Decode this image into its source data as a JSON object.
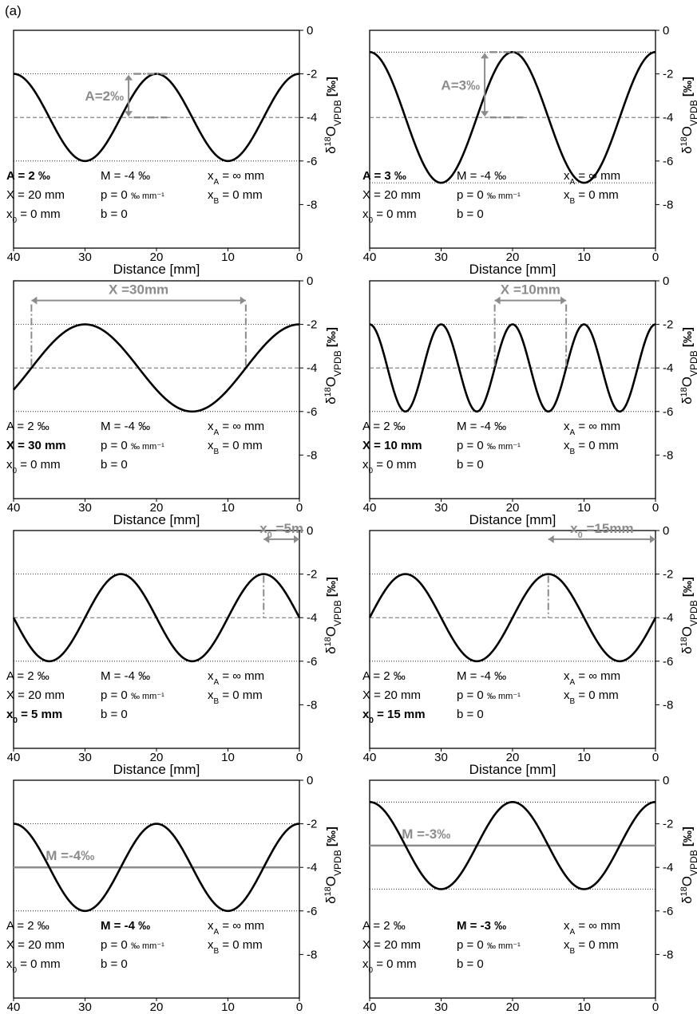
{
  "figure_label": "(a)",
  "colors": {
    "curve": "#000000",
    "annotation": "#8c8c8c",
    "frame": "#000000"
  },
  "chart_data": [
    {
      "type": "line",
      "panel": "1",
      "xlabel": "Distance [mm]",
      "ylabel": "δ18OVPDB [‰]",
      "xlim": [
        40,
        0
      ],
      "ylim": [
        -10,
        0
      ],
      "x_ticks": [
        "40",
        "30",
        "20",
        "10",
        "0"
      ],
      "y_ticks": [
        "0",
        "-2",
        "-4",
        "-6",
        "-8"
      ],
      "params": {
        "A": 2,
        "M": -4,
        "X": 20,
        "x0": 0,
        "p": 0,
        "b": 0,
        "xA": "∞",
        "xB": 0
      },
      "reference_lines": {
        "upper": -2,
        "mean": -4,
        "lower": -6
      },
      "param_text": {
        "A": "A =  2  ‰",
        "M": "M = -4 ‰",
        "xA": "x  =  ∞  mm",
        "X": "X =  20 mm",
        "p": "p =   0  ‰ mm⁻¹",
        "xB": "x  =  0  mm",
        "x0": "x  =  0  mm",
        "b": "b =   0"
      },
      "bold_param": "A",
      "annotation": "A=2‰"
    },
    {
      "type": "line",
      "panel": "2",
      "xlabel": "Distance [mm]",
      "ylabel": "δ18OVPDB [‰]",
      "xlim": [
        40,
        0
      ],
      "ylim": [
        -10,
        0
      ],
      "x_ticks": [
        "40",
        "30",
        "20",
        "10",
        "0"
      ],
      "y_ticks": [
        "0",
        "-2",
        "-4",
        "-6",
        "-8"
      ],
      "params": {
        "A": 3,
        "M": -4,
        "X": 20,
        "x0": 0,
        "p": 0,
        "b": 0,
        "xA": "∞",
        "xB": 0
      },
      "reference_lines": {
        "upper": -1,
        "mean": -4,
        "lower": -7
      },
      "param_text": {
        "A": "A =  3  ‰",
        "M": "M = -4 ‰",
        "xA": "x  =  ∞  mm",
        "X": "X =  20 mm",
        "p": "p =   0  ‰ mm⁻¹",
        "xB": "x  =  0  mm",
        "x0": "x  =  0  mm",
        "b": "b =   0"
      },
      "bold_param": "A",
      "annotation": "A=3‰"
    },
    {
      "type": "line",
      "panel": "3",
      "xlabel": "Distance [mm]",
      "ylabel": "δ18OVPDB [‰]",
      "xlim": [
        40,
        0
      ],
      "ylim": [
        -10,
        0
      ],
      "x_ticks": [
        "40",
        "30",
        "20",
        "10",
        "0"
      ],
      "y_ticks": [
        "0",
        "-2",
        "-4",
        "-6",
        "-8"
      ],
      "params": {
        "A": 2,
        "M": -4,
        "X": 30,
        "x0": 0,
        "p": 0,
        "b": 0,
        "xA": "∞",
        "xB": 0
      },
      "reference_lines": {
        "upper": -2,
        "mean": -4,
        "lower": -6
      },
      "param_text": {
        "A": "A =  2  ‰",
        "M": "M = -4 ‰",
        "xA": "x  =  ∞  mm",
        "X": "X =  30 mm",
        "p": "p =   0  ‰ mm⁻¹",
        "xB": "x  =  0  mm",
        "x0": "x  =  0  mm",
        "b": "b =   0"
      },
      "bold_param": "X",
      "annotation": "X =30mm"
    },
    {
      "type": "line",
      "panel": "4",
      "xlabel": "Distance [mm]",
      "ylabel": "δ18OVPDB [‰]",
      "xlim": [
        40,
        0
      ],
      "ylim": [
        -10,
        0
      ],
      "x_ticks": [
        "40",
        "30",
        "20",
        "10",
        "0"
      ],
      "y_ticks": [
        "0",
        "-2",
        "-4",
        "-6",
        "-8"
      ],
      "params": {
        "A": 2,
        "M": -4,
        "X": 10,
        "x0": 0,
        "p": 0,
        "b": 0,
        "xA": "∞",
        "xB": 0
      },
      "reference_lines": {
        "upper": -2,
        "mean": -4,
        "lower": -6
      },
      "param_text": {
        "A": "A =  2  ‰",
        "M": "M = -4 ‰",
        "xA": "x  =  ∞  mm",
        "X": "X =  10 mm",
        "p": "p =   0  ‰ mm⁻¹",
        "xB": "x  =  0  mm",
        "x0": "x  =  0  mm",
        "b": "b =   0"
      },
      "bold_param": "X",
      "annotation": "X =10mm"
    },
    {
      "type": "line",
      "panel": "5",
      "xlabel": "Distance [mm]",
      "ylabel": "δ18OVPDB [‰]",
      "xlim": [
        40,
        0
      ],
      "ylim": [
        -10,
        0
      ],
      "x_ticks": [
        "40",
        "30",
        "20",
        "10",
        "0"
      ],
      "y_ticks": [
        "0",
        "-2",
        "-4",
        "-6",
        "-8"
      ],
      "params": {
        "A": 2,
        "M": -4,
        "X": 20,
        "x0": 5,
        "p": 0,
        "b": 0,
        "xA": "∞",
        "xB": 0
      },
      "reference_lines": {
        "upper": -2,
        "mean": -4,
        "lower": -6
      },
      "param_text": {
        "A": "A =  2  ‰",
        "M": "M = -4 ‰",
        "xA": "x  =  ∞  mm",
        "X": "X =  20 mm",
        "p": "p =   0  ‰ mm⁻¹",
        "xB": "x  =  0  mm",
        "x0": "x  =  5  mm",
        "b": "b =   0"
      },
      "bold_param": "x0",
      "annotation": "x =5m"
    },
    {
      "type": "line",
      "panel": "6",
      "xlabel": "Distance [mm]",
      "ylabel": "δ18OVPDB [‰]",
      "xlim": [
        40,
        0
      ],
      "ylim": [
        -10,
        0
      ],
      "x_ticks": [
        "40",
        "30",
        "20",
        "10",
        "0"
      ],
      "y_ticks": [
        "0",
        "-2",
        "-4",
        "-6",
        "-8"
      ],
      "params": {
        "A": 2,
        "M": -4,
        "X": 20,
        "x0": 15,
        "p": 0,
        "b": 0,
        "xA": "∞",
        "xB": 0
      },
      "reference_lines": {
        "upper": -2,
        "mean": -4,
        "lower": -6
      },
      "param_text": {
        "A": "A =  2  ‰",
        "M": "M = -4 ‰",
        "xA": "x  =  ∞  mm",
        "X": "X =  20 mm",
        "p": "p =   0  ‰ mm⁻¹",
        "xB": "x  =  0  mm",
        "x0": "x  = 15 mm",
        "b": "b =   0"
      },
      "bold_param": "x0",
      "annotation": "x =15mm"
    },
    {
      "type": "line",
      "panel": "7",
      "xlabel": "Distance [mm]",
      "ylabel": "δ18OVPDB [‰]",
      "xlim": [
        40,
        0
      ],
      "ylim": [
        -10,
        0
      ],
      "x_ticks": [
        "40",
        "30",
        "20",
        "10",
        "0"
      ],
      "y_ticks": [
        "0",
        "-2",
        "-4",
        "-6",
        "-8"
      ],
      "params": {
        "A": 2,
        "M": -4,
        "X": 20,
        "x0": 0,
        "p": 0,
        "b": 0,
        "xA": "∞",
        "xB": 0
      },
      "reference_lines": {
        "upper": -2,
        "mean": -4,
        "lower": -6
      },
      "param_text": {
        "A": "A =  2  ‰",
        "M": "M = -4 ‰",
        "xA": "x  =  ∞  mm",
        "X": "X =  20 mm",
        "p": "p =   0  ‰ mm⁻¹",
        "xB": "x  =  0  mm",
        "x0": "x  =  0  mm",
        "b": "b =   0"
      },
      "bold_param": "M",
      "annotation": "M =-4‰"
    },
    {
      "type": "line",
      "panel": "8",
      "xlabel": "Distance [mm]",
      "ylabel": "δ18OVPDB [‰]",
      "xlim": [
        40,
        0
      ],
      "ylim": [
        -10,
        0
      ],
      "x_ticks": [
        "40",
        "30",
        "20",
        "10",
        "0"
      ],
      "y_ticks": [
        "0",
        "-2",
        "-4",
        "-6",
        "-8"
      ],
      "params": {
        "A": 2,
        "M": -3,
        "X": 20,
        "x0": 0,
        "p": 0,
        "b": 0,
        "xA": "∞",
        "xB": 0
      },
      "reference_lines": {
        "upper": -1,
        "mean": -3,
        "lower": -5
      },
      "param_text": {
        "A": "A =  2  ‰",
        "M": "M = -3 ‰",
        "xA": "x  =  ∞  mm",
        "X": "X =  20 mm",
        "p": "p =   0  ‰ mm⁻¹",
        "xB": "x  =  0  mm",
        "x0": "x  =  0  mm",
        "b": "b =   0"
      },
      "bold_param": "M",
      "annotation": "M =-3‰"
    }
  ]
}
